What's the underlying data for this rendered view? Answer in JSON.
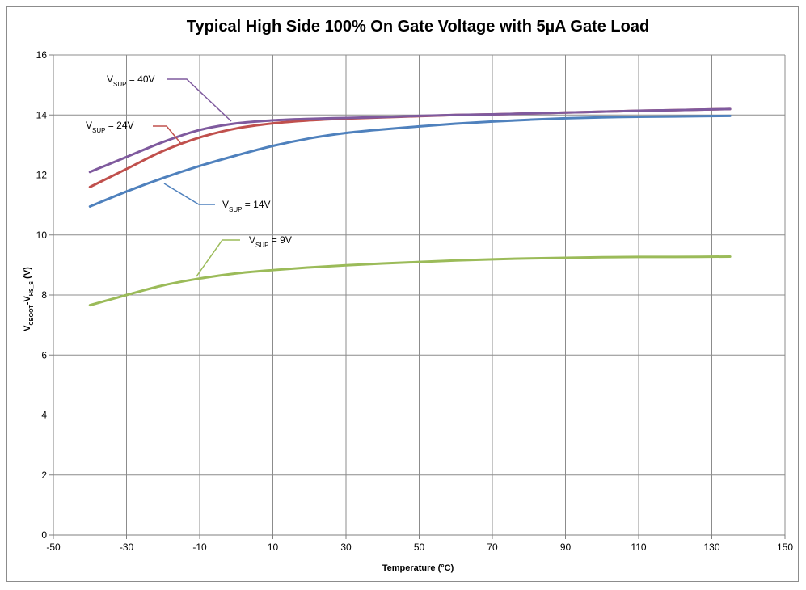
{
  "chart_data": {
    "type": "line",
    "title": "Typical High Side 100% On Gate Voltage with 5µA Gate Load",
    "xlabel": "Temperature (°C)",
    "ylabel": {
      "main": "V",
      "sub1": "CBOOT",
      "mid": "-V",
      "sub2": "HS_S",
      "tail": " (V)"
    },
    "xlim": [
      -50,
      150
    ],
    "ylim": [
      0,
      16
    ],
    "xticks": [
      -50,
      -30,
      -10,
      10,
      30,
      50,
      70,
      90,
      110,
      130,
      150
    ],
    "yticks": [
      0,
      2,
      4,
      6,
      8,
      10,
      12,
      14,
      16
    ],
    "grid": true,
    "x": [
      -40,
      -30,
      -20,
      -10,
      0,
      10,
      20,
      30,
      40,
      50,
      60,
      70,
      80,
      90,
      100,
      110,
      120,
      135
    ],
    "series": [
      {
        "name": "VSUP = 40V",
        "label": {
          "main": "V",
          "sub": "SUP",
          "rest": " = 40V"
        },
        "color": "#7f5a9e",
        "values": [
          12.1,
          12.6,
          13.1,
          13.5,
          13.72,
          13.82,
          13.87,
          13.9,
          13.93,
          13.97,
          14.0,
          14.02,
          14.05,
          14.08,
          14.11,
          14.14,
          14.16,
          14.2
        ]
      },
      {
        "name": "VSUP = 24V",
        "label": {
          "main": "V",
          "sub": "SUP",
          "rest": " = 24V"
        },
        "color": "#c0504d",
        "values": [
          11.6,
          12.2,
          12.8,
          13.25,
          13.55,
          13.72,
          13.82,
          13.88,
          13.92,
          13.96,
          14.0,
          14.02,
          14.05,
          14.08,
          14.11,
          14.14,
          14.16,
          14.2
        ]
      },
      {
        "name": "VSUP = 14V",
        "label": {
          "main": "V",
          "sub": "SUP",
          "rest": " = 14V"
        },
        "color": "#4f81bd",
        "values": [
          10.95,
          11.45,
          11.9,
          12.3,
          12.65,
          12.97,
          13.22,
          13.4,
          13.52,
          13.62,
          13.71,
          13.78,
          13.84,
          13.89,
          13.92,
          13.94,
          13.95,
          13.97
        ]
      },
      {
        "name": "VSUP = 9V",
        "label": {
          "main": "V",
          "sub": "SUP",
          "rest": " = 9V"
        },
        "color": "#9bbb59",
        "values": [
          7.66,
          8.0,
          8.32,
          8.55,
          8.72,
          8.83,
          8.92,
          8.99,
          9.05,
          9.1,
          9.15,
          9.19,
          9.22,
          9.24,
          9.26,
          9.27,
          9.27,
          9.28
        ]
      }
    ]
  }
}
